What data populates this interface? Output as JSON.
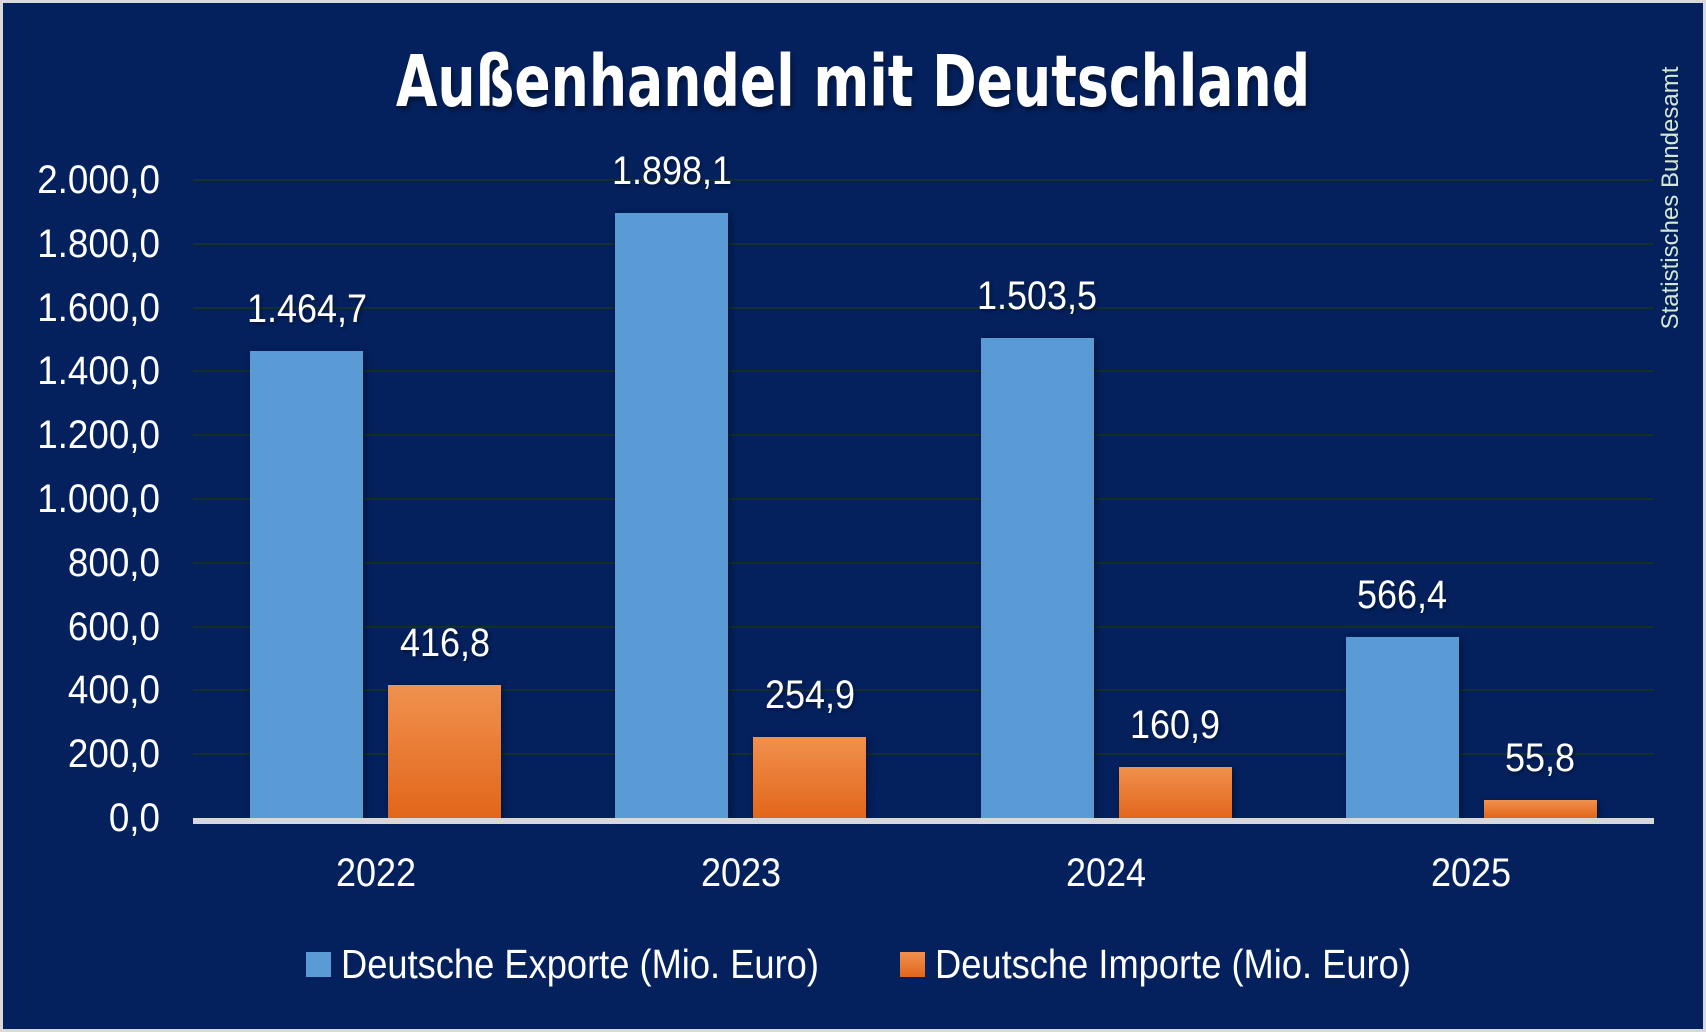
{
  "chart_data": {
    "type": "bar",
    "title": "Außenhandel mit Deutschland",
    "source_note": "Statistisches Bundesamt",
    "categories": [
      "2022",
      "2023",
      "2024",
      "2025"
    ],
    "series": [
      {
        "name": "Deutsche Exporte (Mio. Euro)",
        "color": "#5b9bd5",
        "values": [
          1464.7,
          1898.1,
          1503.5,
          566.4
        ],
        "value_labels": [
          "1.464,7",
          "1.898,1",
          "1.503,5",
          "566,4"
        ]
      },
      {
        "name": "Deutsche Importe (Mio. Euro)",
        "color": "#ed7d31",
        "values": [
          416.8,
          254.9,
          160.9,
          55.8
        ],
        "value_labels": [
          "416,8",
          "254,9",
          "160,9",
          "55,8"
        ]
      }
    ],
    "xlabel": "",
    "ylabel": "",
    "ylim": [
      0,
      2000
    ],
    "ytick_step": 200,
    "ytick_labels": [
      "0,0",
      "200,0",
      "400,0",
      "600,0",
      "800,0",
      "1.000,0",
      "1.200,0",
      "1.400,0",
      "1.600,0",
      "1.800,0",
      "2.000,0"
    ],
    "grid": true,
    "legend_position": "bottom"
  },
  "colors": {
    "background": "#04215e",
    "border": "#d9d9d9",
    "gridline": "#143129",
    "axis_line": "#d8d8d8",
    "text": "#ffffff",
    "side_note_text": "#d4e8d4",
    "export_bar": "#5b9bd5",
    "import_bar_top": "#f0914f",
    "import_bar_bottom": "#e2661a"
  }
}
